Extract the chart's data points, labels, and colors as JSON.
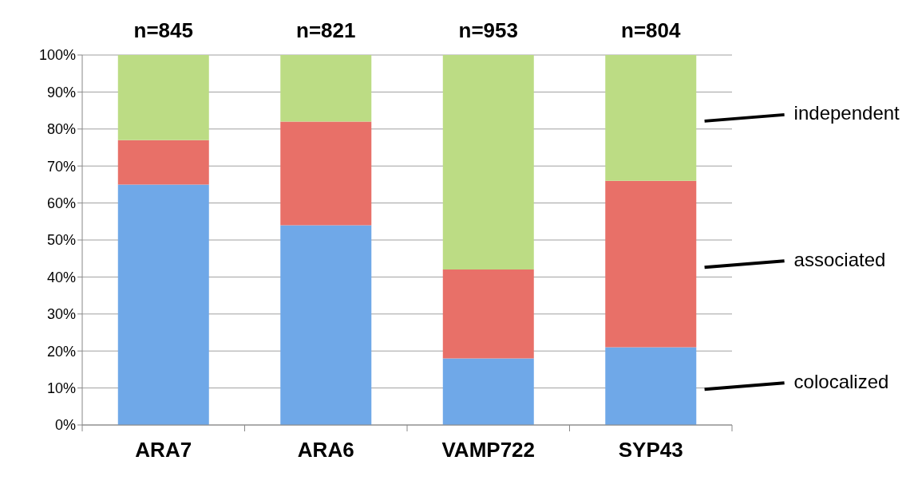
{
  "chart_data": {
    "type": "bar",
    "stacked": true,
    "categories": [
      "ARA7",
      "ARA6",
      "VAMP722",
      "SYP43"
    ],
    "series": [
      {
        "name": "colocalized",
        "color": "#6fa8e8",
        "values": [
          65,
          54,
          18,
          21
        ]
      },
      {
        "name": "associated",
        "color": "#e87068",
        "values": [
          12,
          28,
          24,
          45
        ]
      },
      {
        "name": "independent",
        "color": "#bcdc84",
        "values": [
          23,
          18,
          58,
          34
        ]
      }
    ],
    "ylim": [
      0,
      100
    ],
    "yticks": [
      {
        "value": 0,
        "label": "0%"
      },
      {
        "value": 10,
        "label": "10%"
      },
      {
        "value": 20,
        "label": "20%"
      },
      {
        "value": 30,
        "label": "30%"
      },
      {
        "value": 40,
        "label": "40%"
      },
      {
        "value": 50,
        "label": "50%"
      },
      {
        "value": 60,
        "label": "60%"
      },
      {
        "value": 70,
        "label": "70%"
      },
      {
        "value": 80,
        "label": "80%"
      },
      {
        "value": 90,
        "label": "90%"
      },
      {
        "value": 100,
        "label": "100%"
      }
    ],
    "grid": "y",
    "legend": false,
    "annotations": [
      {
        "text": "n=845",
        "x": "ARA7",
        "y": 100
      },
      {
        "text": "n=821",
        "x": "ARA6",
        "y": 100
      },
      {
        "text": "n=953",
        "x": "VAMP722",
        "y": 100
      },
      {
        "text": "n=804",
        "x": "SYP43",
        "y": 100
      }
    ]
  }
}
